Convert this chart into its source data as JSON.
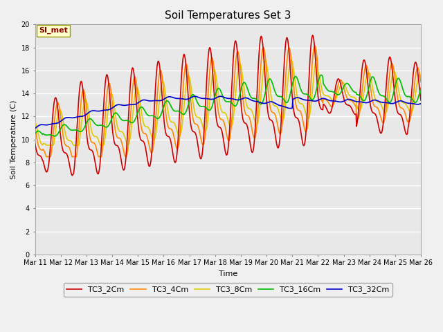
{
  "title": "Soil Temperatures Set 3",
  "xlabel": "Time",
  "ylabel": "Soil Temperature (C)",
  "ylim": [
    0,
    20
  ],
  "yticks": [
    0,
    2,
    4,
    6,
    8,
    10,
    12,
    14,
    16,
    18,
    20
  ],
  "xtick_labels": [
    "Mar 11",
    "Mar 12",
    "Mar 13",
    "Mar 14",
    "Mar 15",
    "Mar 16",
    "Mar 17",
    "Mar 18",
    "Mar 19",
    "Mar 20",
    "Mar 21",
    "Mar 22",
    "Mar 23",
    "Mar 24",
    "Mar 25",
    "Mar 26"
  ],
  "series_colors": [
    "#cc0000",
    "#ff8800",
    "#ddcc00",
    "#00bb00",
    "#0000cc"
  ],
  "series_labels": [
    "TC3_2Cm",
    "TC3_4Cm",
    "TC3_8Cm",
    "TC3_16Cm",
    "TC3_32Cm"
  ],
  "legend_box_color": "#ffffcc",
  "legend_box_edge": "#999900",
  "annotation_text": "SI_met",
  "annotation_color": "#880000",
  "bg_color": "#e8e8e8",
  "grid_color": "#ffffff",
  "line_width": 1.2,
  "fig_facecolor": "#f0f0f0"
}
